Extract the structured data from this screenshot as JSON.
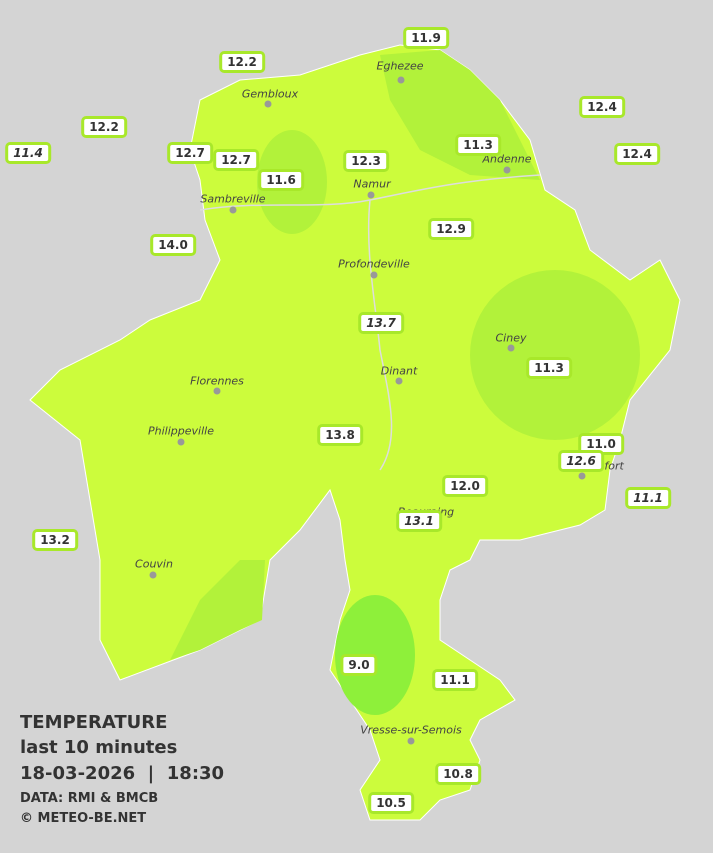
{
  "legend": {
    "title": "TEMPERATURE",
    "subtitle": "last 10 minutes",
    "datetime": "18-03-2026  |  18:30",
    "source": "DATA: RMI & BMCB",
    "credit": "© METEO-BE.NET"
  },
  "towns": [
    "Eghezee",
    "Gembloux",
    "Andenne",
    "Namur",
    "Sambreville",
    "Profondeville",
    "Ciney",
    "Dinant",
    "Florennes",
    "Philippeville",
    "Rochefort",
    "Beauraing",
    "Couvin",
    "Vresse-sur-Semois"
  ],
  "stations": [
    "12.2",
    "11.9",
    "12.2",
    "11.4",
    "12.7",
    "12.7",
    "11.6",
    "12.3",
    "11.3",
    "12.4",
    "12.4",
    "14.0",
    "12.9",
    "13.7",
    "11.3",
    "13.8",
    "11.0",
    "12.6",
    "12.0",
    "11.1",
    "13.1",
    "13.2",
    "9.0",
    "11.1",
    "10.8",
    "10.5"
  ]
}
